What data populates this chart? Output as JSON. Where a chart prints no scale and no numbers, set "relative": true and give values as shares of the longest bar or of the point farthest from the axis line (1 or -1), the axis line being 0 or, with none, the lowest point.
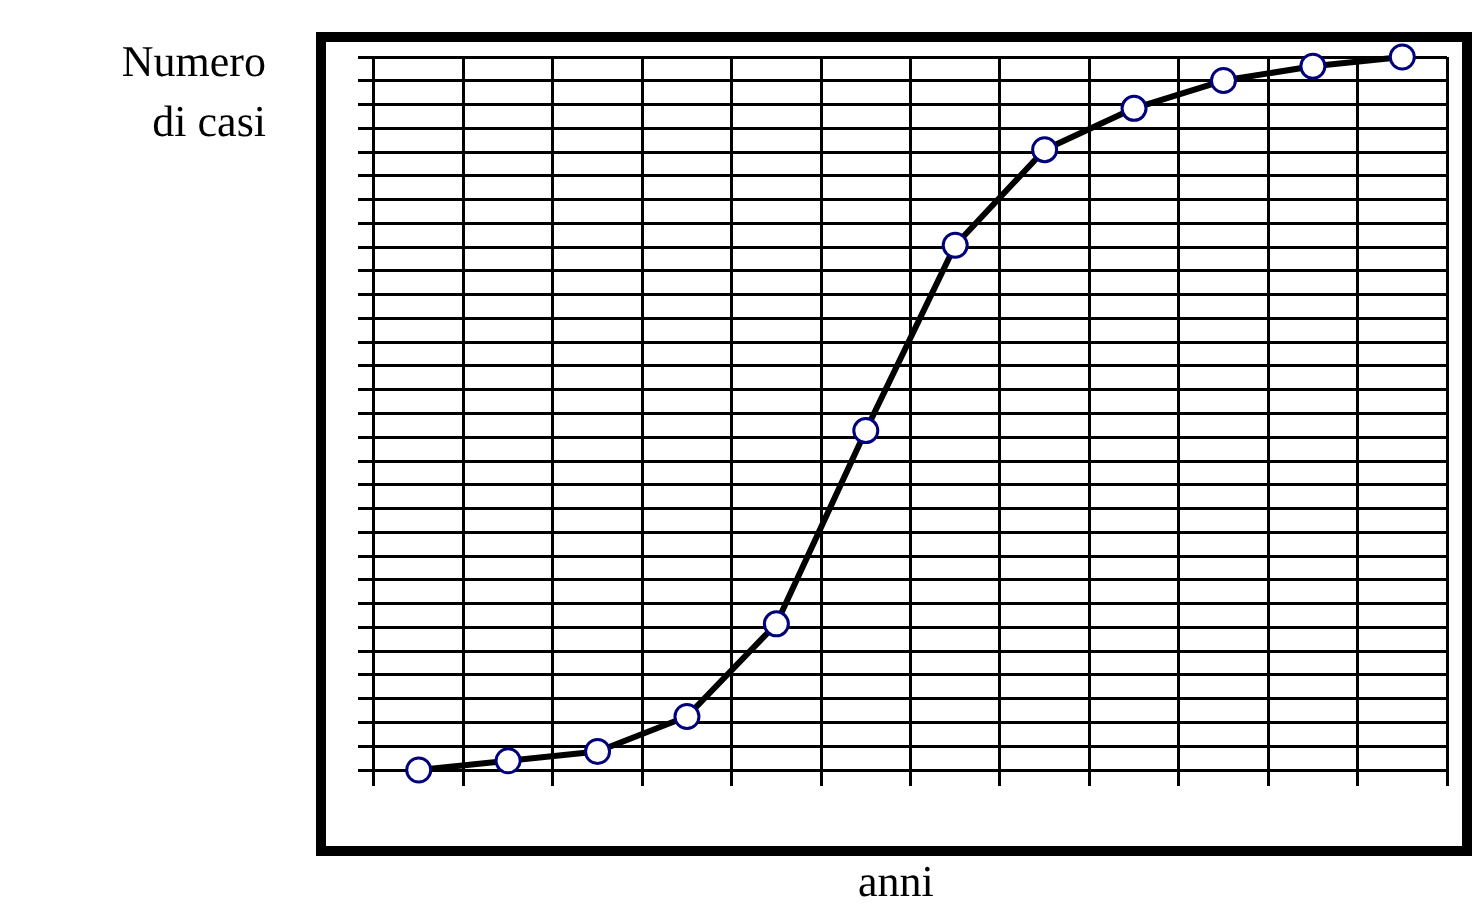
{
  "chart_data": {
    "type": "line",
    "ylabel": "Numero di casi",
    "xlabel": "anni",
    "relative": true,
    "grid": true,
    "marker": "circle",
    "line_style": "solid",
    "legend": false,
    "categories": [
      null,
      null,
      null,
      null,
      null,
      null,
      null,
      null,
      null,
      null,
      null,
      null
    ],
    "series": [
      {
        "color": "#000000",
        "values": [
          0,
          0.013,
          0.026,
          0.075,
          0.205,
          0.476,
          0.736,
          0.87,
          0.928,
          0.967,
          0.987,
          1
        ]
      }
    ]
  }
}
